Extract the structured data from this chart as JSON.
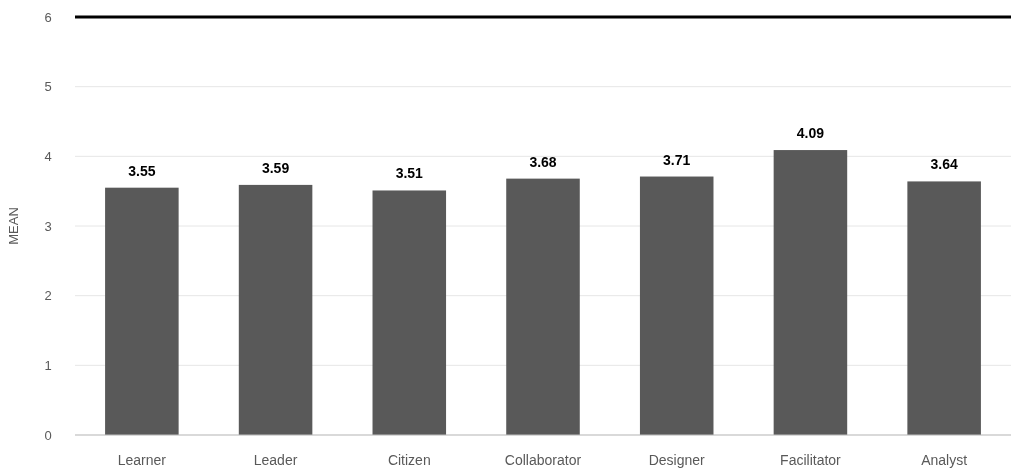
{
  "chart_data": {
    "type": "bar",
    "ylabel": "MEAN",
    "categories": [
      "Learner",
      "Leader",
      "Citizen",
      "Collaborator",
      "Designer",
      "Facilitator",
      "Analyst"
    ],
    "values": [
      3.55,
      3.59,
      3.51,
      3.68,
      3.71,
      4.09,
      3.64
    ],
    "color": "#595959",
    "ylim": [
      0,
      6
    ],
    "yticks": [
      0,
      1,
      2,
      3,
      4,
      5,
      6
    ],
    "grid": "y",
    "data_labels": true,
    "ref_lines": [
      {
        "axis": "y",
        "value": 6,
        "color": "#000000"
      }
    ]
  }
}
